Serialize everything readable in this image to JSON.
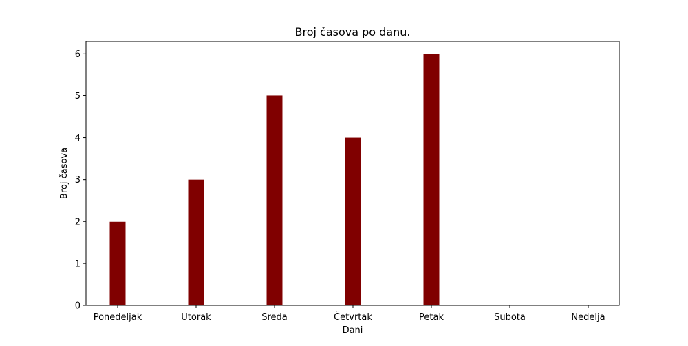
{
  "chart_data": {
    "type": "bar",
    "title": "Broj časova po danu.",
    "xlabel": "Dani",
    "ylabel": "Broj časova",
    "categories": [
      "Ponedeljak",
      "Utorak",
      "Sreda",
      "Četvrtak",
      "Petak",
      "Subota",
      "Nedelja"
    ],
    "values": [
      2,
      3,
      5,
      4,
      6,
      0,
      0
    ],
    "ylim": [
      0,
      6.3
    ],
    "yticks": [
      "0",
      "1",
      "2",
      "3",
      "4",
      "5",
      "6"
    ],
    "bar_color": "#800000",
    "grid": false
  }
}
